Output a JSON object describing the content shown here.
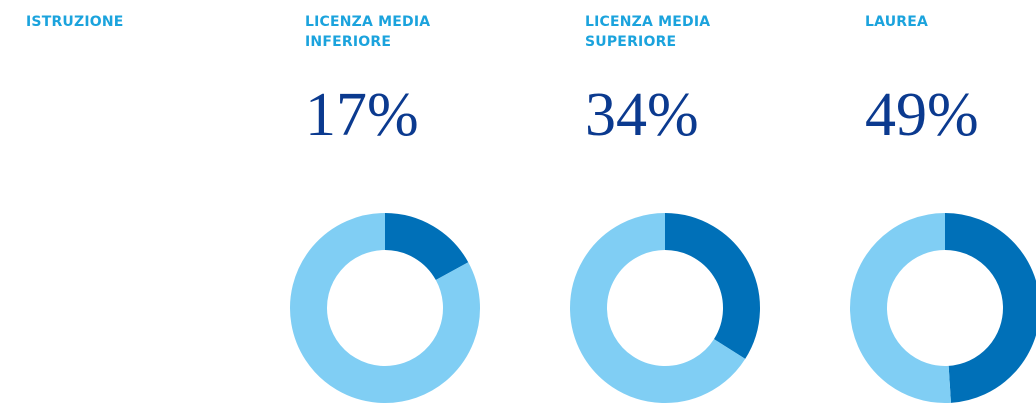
{
  "title": "ISTRUZIONE",
  "chart_data": [
    {
      "type": "pie",
      "title": "LICENZA MEDIA INFERIORE",
      "values": [
        17,
        83
      ],
      "value_labels": [
        "17%",
        null
      ],
      "colors": [
        "#0070b8",
        "#80cef4"
      ]
    },
    {
      "type": "pie",
      "title": "LICENZA MEDIA SUPERIORE",
      "values": [
        34,
        66
      ],
      "value_labels": [
        "34%",
        null
      ],
      "colors": [
        "#0070b8",
        "#80cef4"
      ]
    },
    {
      "type": "pie",
      "title": "LAUREA",
      "values": [
        49,
        51
      ],
      "value_labels": [
        "49%",
        null
      ],
      "colors": [
        "#0070b8",
        "#80cef4"
      ]
    }
  ]
}
